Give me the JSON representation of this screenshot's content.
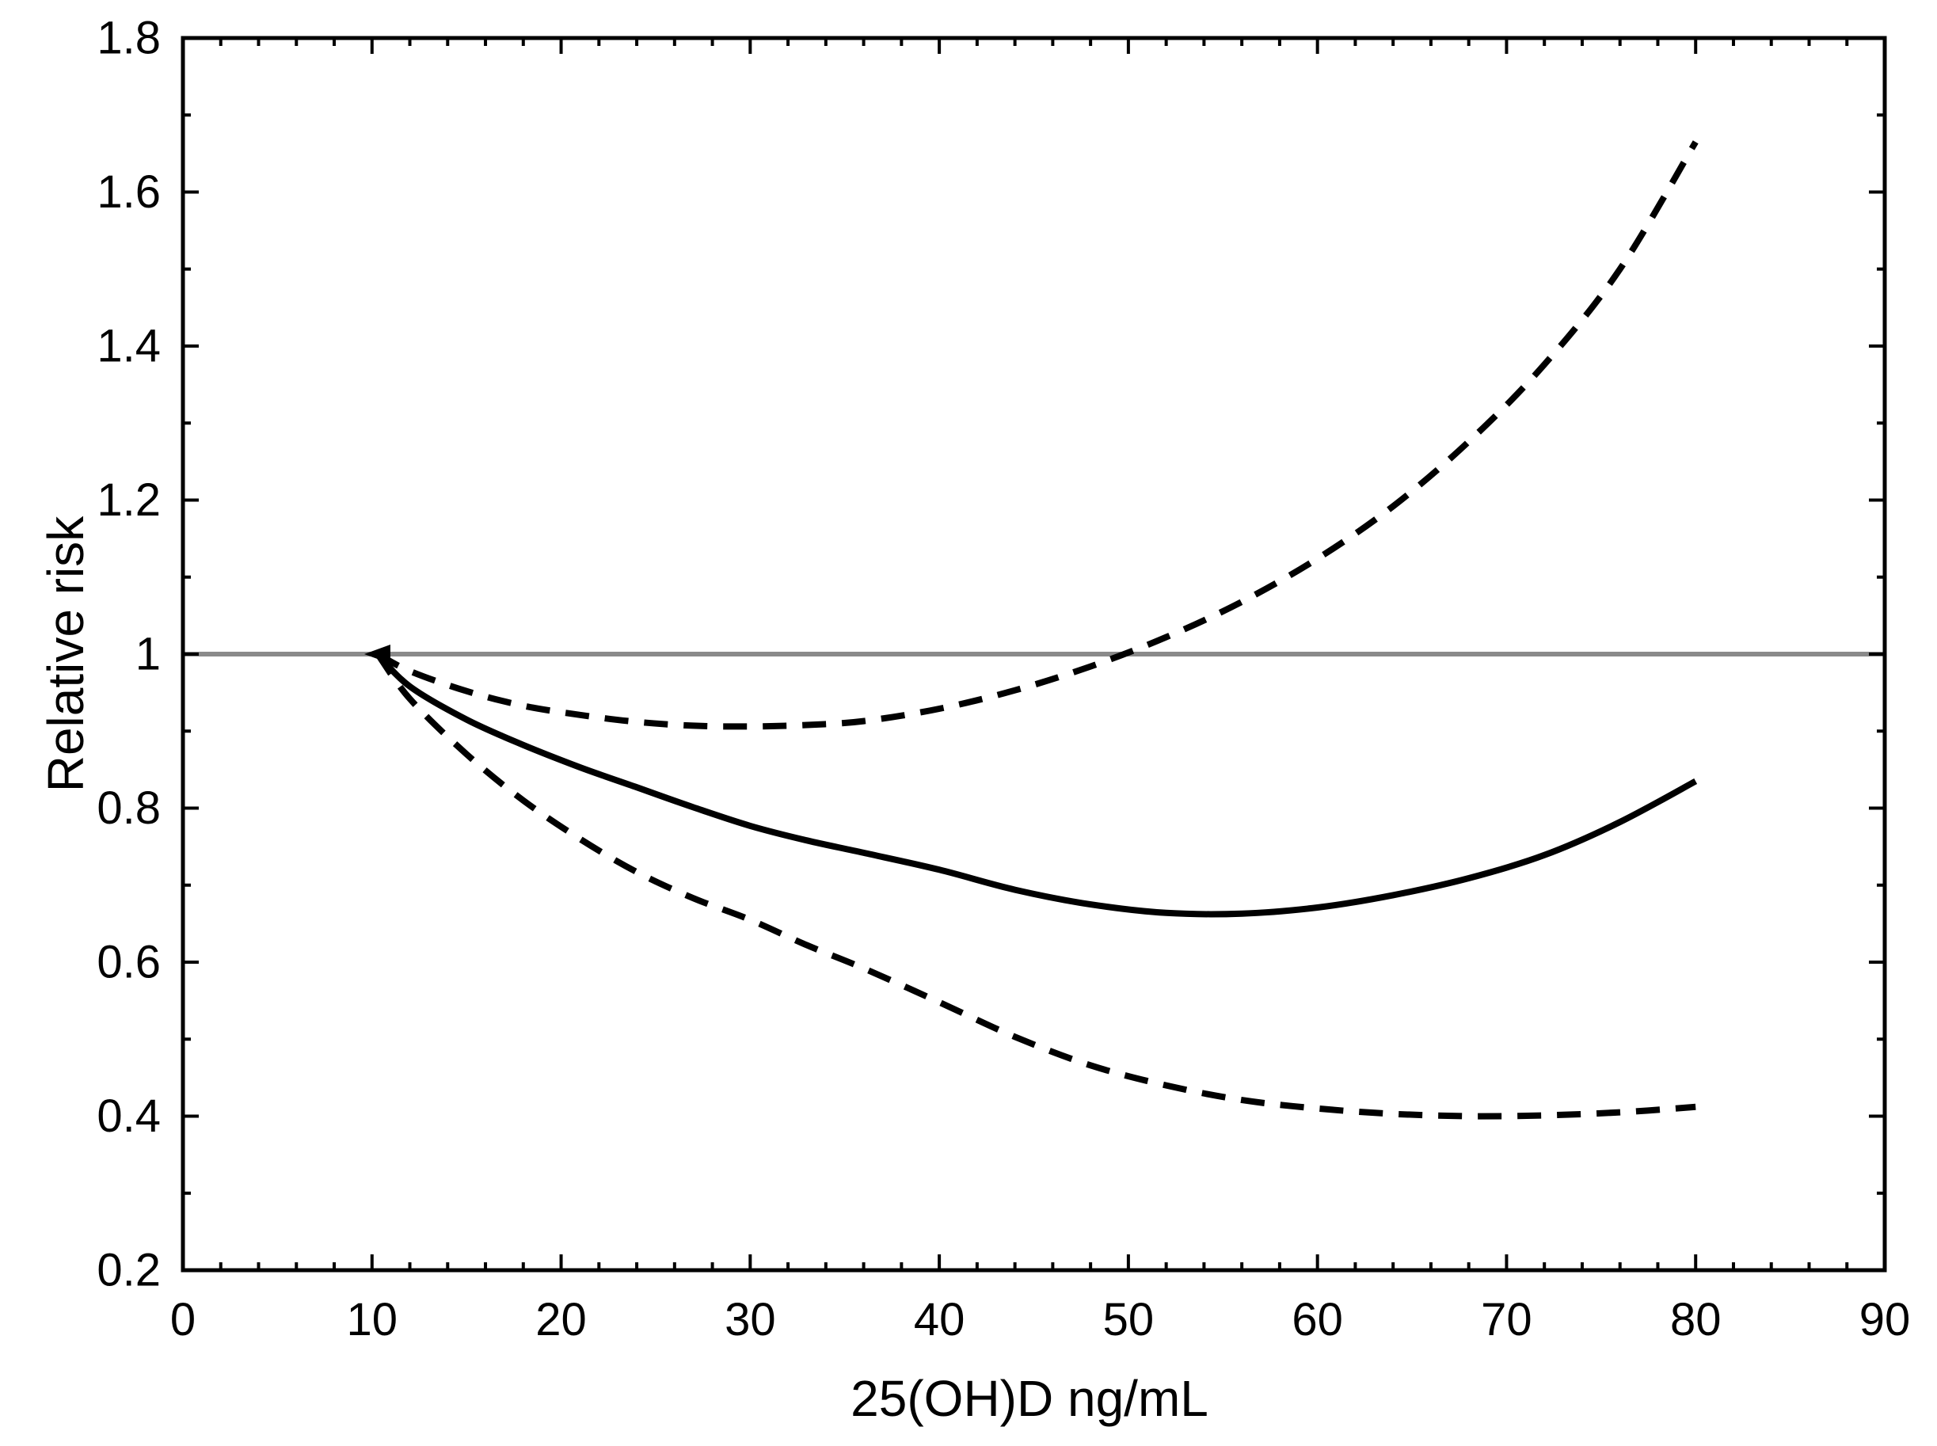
{
  "figure": {
    "background": "#ffffff",
    "axis_color": "#000000",
    "curve_color": "#000000"
  },
  "chart_data": {
    "type": "line",
    "title": "",
    "xlabel": "25(OH)D ng/mL",
    "ylabel": "Relative risk",
    "xlim": [
      0,
      90
    ],
    "ylim": [
      0.2,
      1.8
    ],
    "grid": false,
    "legend": "none",
    "x_major_ticks": [
      0,
      10,
      20,
      30,
      40,
      50,
      60,
      70,
      80,
      90
    ],
    "x_tick_labels": [
      "0",
      "10",
      "20",
      "30",
      "40",
      "50",
      "60",
      "70",
      "80",
      "90"
    ],
    "x_minor_step": 2,
    "y_major_ticks": [
      0.2,
      0.4,
      0.6,
      0.8,
      1.0,
      1.2,
      1.4,
      1.6,
      1.8
    ],
    "y_tick_labels": [
      "0.2",
      "0.4",
      "0.6",
      "0.8",
      "1",
      "1.2",
      "1.4",
      "1.6",
      "1.8"
    ],
    "y_minor_step": 0.1,
    "reference_line": {
      "y": 1.0,
      "color": "#8a8a8a"
    },
    "origin_marker": {
      "x": 10.3,
      "y": 1.0,
      "shape": "left-arrowhead",
      "color": "#000000"
    },
    "series": [
      {
        "name": "relative-risk-estimate",
        "style": "solid",
        "color": "#000000",
        "x": [
          10.3,
          12,
          15,
          18,
          21,
          24,
          27,
          30,
          33,
          36,
          40,
          44,
          48,
          52,
          56,
          60,
          64,
          68,
          72,
          76,
          80
        ],
        "y": [
          1.0,
          0.958,
          0.915,
          0.882,
          0.853,
          0.827,
          0.801,
          0.777,
          0.758,
          0.742,
          0.72,
          0.694,
          0.675,
          0.664,
          0.663,
          0.671,
          0.687,
          0.709,
          0.739,
          0.782,
          0.835
        ]
      },
      {
        "name": "upper-confidence-bound",
        "style": "dashed",
        "color": "#000000",
        "x": [
          10.3,
          12,
          15,
          18,
          21,
          24,
          27,
          30,
          33,
          36,
          40,
          44,
          48,
          52,
          56,
          60,
          64,
          68,
          72,
          76,
          80
        ],
        "y": [
          1.0,
          0.978,
          0.952,
          0.933,
          0.921,
          0.912,
          0.907,
          0.906,
          0.908,
          0.913,
          0.929,
          0.953,
          0.984,
          1.022,
          1.068,
          1.124,
          1.192,
          1.276,
          1.376,
          1.5,
          1.665
        ]
      },
      {
        "name": "lower-confidence-bound",
        "style": "dashed",
        "color": "#000000",
        "x": [
          10.3,
          12,
          15,
          18,
          21,
          24,
          27,
          30,
          33,
          36,
          40,
          44,
          48,
          52,
          56,
          60,
          64,
          68,
          72,
          76,
          80
        ],
        "y": [
          1.0,
          0.942,
          0.87,
          0.81,
          0.76,
          0.717,
          0.683,
          0.655,
          0.622,
          0.592,
          0.548,
          0.503,
          0.466,
          0.44,
          0.421,
          0.41,
          0.403,
          0.4,
          0.401,
          0.405,
          0.412
        ]
      }
    ]
  }
}
